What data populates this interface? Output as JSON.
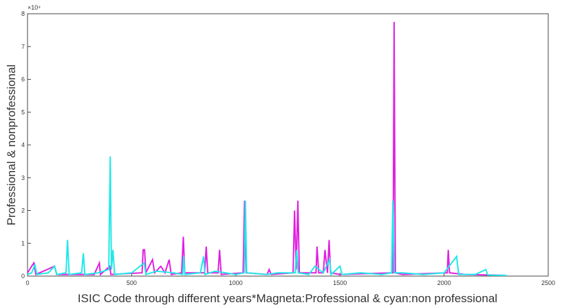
{
  "chart_data": {
    "type": "line",
    "xlabel": "ISIC Code through different years*Magneta:Professional & cyan:non professional",
    "ylabel": "Professional & nonprofessional",
    "exponent": "×10⁴",
    "xlim": [
      0,
      2500
    ],
    "xticks": [
      0,
      500,
      1000,
      1500,
      2000,
      2500
    ],
    "ylim": [
      0,
      8
    ],
    "yticks": [
      0,
      1,
      2,
      3,
      4,
      5,
      6,
      7,
      8
    ],
    "series": [
      {
        "color": "#e020e0",
        "x": [
          0,
          30,
          40,
          130,
          140,
          320,
          345,
          350,
          395,
          400,
          550,
          555,
          562,
          568,
          600,
          610,
          640,
          660,
          680,
          690,
          740,
          748,
          755,
          850,
          858,
          865,
          915,
          922,
          930,
          1035,
          1042,
          1050,
          1150,
          1160,
          1170,
          1275,
          1282,
          1290,
          1298,
          1305,
          1385,
          1390,
          1398,
          1420,
          1428,
          1440,
          1448,
          1455,
          1500,
          1755,
          1760,
          1766,
          1800,
          2015,
          2020,
          2026,
          2100,
          2300
        ],
        "values": [
          0.1,
          0.4,
          0.05,
          0.3,
          0.05,
          0.05,
          0.4,
          0.05,
          0.3,
          0.05,
          0.1,
          0.8,
          0.8,
          0.1,
          0.5,
          0.1,
          0.3,
          0.1,
          0.5,
          0.05,
          0.1,
          1.2,
          0.1,
          0.1,
          0.9,
          0.1,
          0.1,
          0.8,
          0.05,
          0.1,
          2.3,
          0.1,
          0.05,
          0.2,
          0.05,
          0.1,
          2.0,
          0.2,
          2.3,
          0.1,
          0.1,
          0.9,
          0.1,
          0.1,
          0.8,
          0.1,
          1.1,
          0.1,
          0.05,
          0.1,
          7.75,
          0.1,
          0.05,
          0.1,
          0.8,
          0.1,
          0.05,
          0.02
        ]
      },
      {
        "color": "#20e8e8",
        "x": [
          0,
          20,
          35,
          45,
          100,
          130,
          140,
          185,
          192,
          200,
          260,
          268,
          275,
          340,
          390,
          397,
          403,
          410,
          418,
          500,
          560,
          568,
          620,
          700,
          745,
          750,
          756,
          830,
          845,
          852,
          900,
          1000,
          1040,
          1046,
          1052,
          1150,
          1200,
          1285,
          1292,
          1300,
          1350,
          1380,
          1420,
          1450,
          1458,
          1500,
          1510,
          1600,
          1700,
          1748,
          1754,
          1760,
          1800,
          1900,
          2000,
          2060,
          2070,
          2150,
          2200,
          2210,
          2300
        ],
        "values": [
          0.05,
          0.1,
          0.35,
          0.05,
          0.1,
          0.3,
          0.05,
          0.1,
          1.1,
          0.05,
          0.1,
          0.7,
          0.05,
          0.1,
          0.2,
          3.65,
          0.2,
          0.8,
          0.05,
          0.1,
          0.4,
          0.05,
          0.15,
          0.1,
          0.05,
          0.6,
          0.05,
          0.1,
          0.6,
          0.05,
          0.15,
          0.05,
          0.1,
          2.3,
          0.1,
          0.05,
          0.1,
          0.1,
          0.8,
          0.1,
          0.05,
          0.3,
          0.1,
          0.5,
          0.05,
          0.3,
          0.05,
          0.1,
          0.05,
          0.1,
          2.3,
          0.1,
          0.1,
          0.05,
          0.1,
          0.6,
          0.05,
          0.05,
          0.2,
          0.03,
          0.02
        ]
      }
    ]
  }
}
